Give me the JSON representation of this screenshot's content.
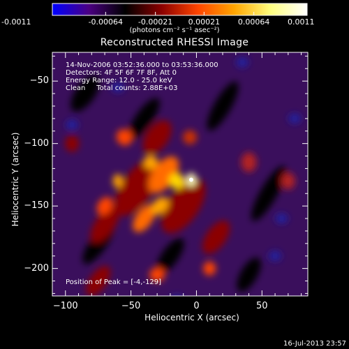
{
  "colorbar": {
    "tick_labels": [
      "-0.0011",
      "-0.00064",
      "-0.00021",
      "0.00021",
      "0.00064",
      "0.0011"
    ],
    "units_label": "(photons cm⁻² s⁻¹ asec⁻²)"
  },
  "plot": {
    "title": "Reconstructed RHESSI Image",
    "info_lines": [
      "14-Nov-2006 03:52:36.000 to 03:53:36.000",
      "Detectors: 4F 5F 6F 7F 8F, Att 0",
      "Energy Range: 12.0 - 25.0 keV",
      "Clean     Total counts: 2.88E+03"
    ],
    "peak_label": "Position of Peak = [-4,-129]",
    "xlabel": "Heliocentric X (arcsec)",
    "ylabel": "Heliocentric Y (arcsec)",
    "timestamp": "16-Jul-2013 23:57"
  },
  "chart_data": {
    "type": "heatmap",
    "title": "Reconstructed RHESSI Image",
    "xlabel": "Heliocentric X (arcsec)",
    "ylabel": "Heliocentric Y (arcsec)",
    "xlim": [
      -110,
      85
    ],
    "ylim": [
      -222,
      -27
    ],
    "x_ticks": [
      -100,
      -50,
      0,
      50
    ],
    "y_ticks": [
      -50,
      -100,
      -150,
      -200
    ],
    "x_tick_labels": [
      "−100",
      "−50",
      "0",
      "50"
    ],
    "y_tick_labels": [
      "−50",
      "−100",
      "−150",
      "−200"
    ],
    "peak_position": [
      -4,
      -129
    ],
    "colorbar_range": [
      -0.0011,
      0.0011
    ],
    "colorbar_ticks": [
      -0.0011,
      -0.00064,
      -0.00021,
      0.00021,
      0.00064,
      0.0011
    ],
    "colormap": [
      "#0000ff",
      "#4b0082",
      "#000000",
      "#8b0000",
      "#ff4500",
      "#ffa500",
      "#ffff80",
      "#ffffff"
    ]
  }
}
